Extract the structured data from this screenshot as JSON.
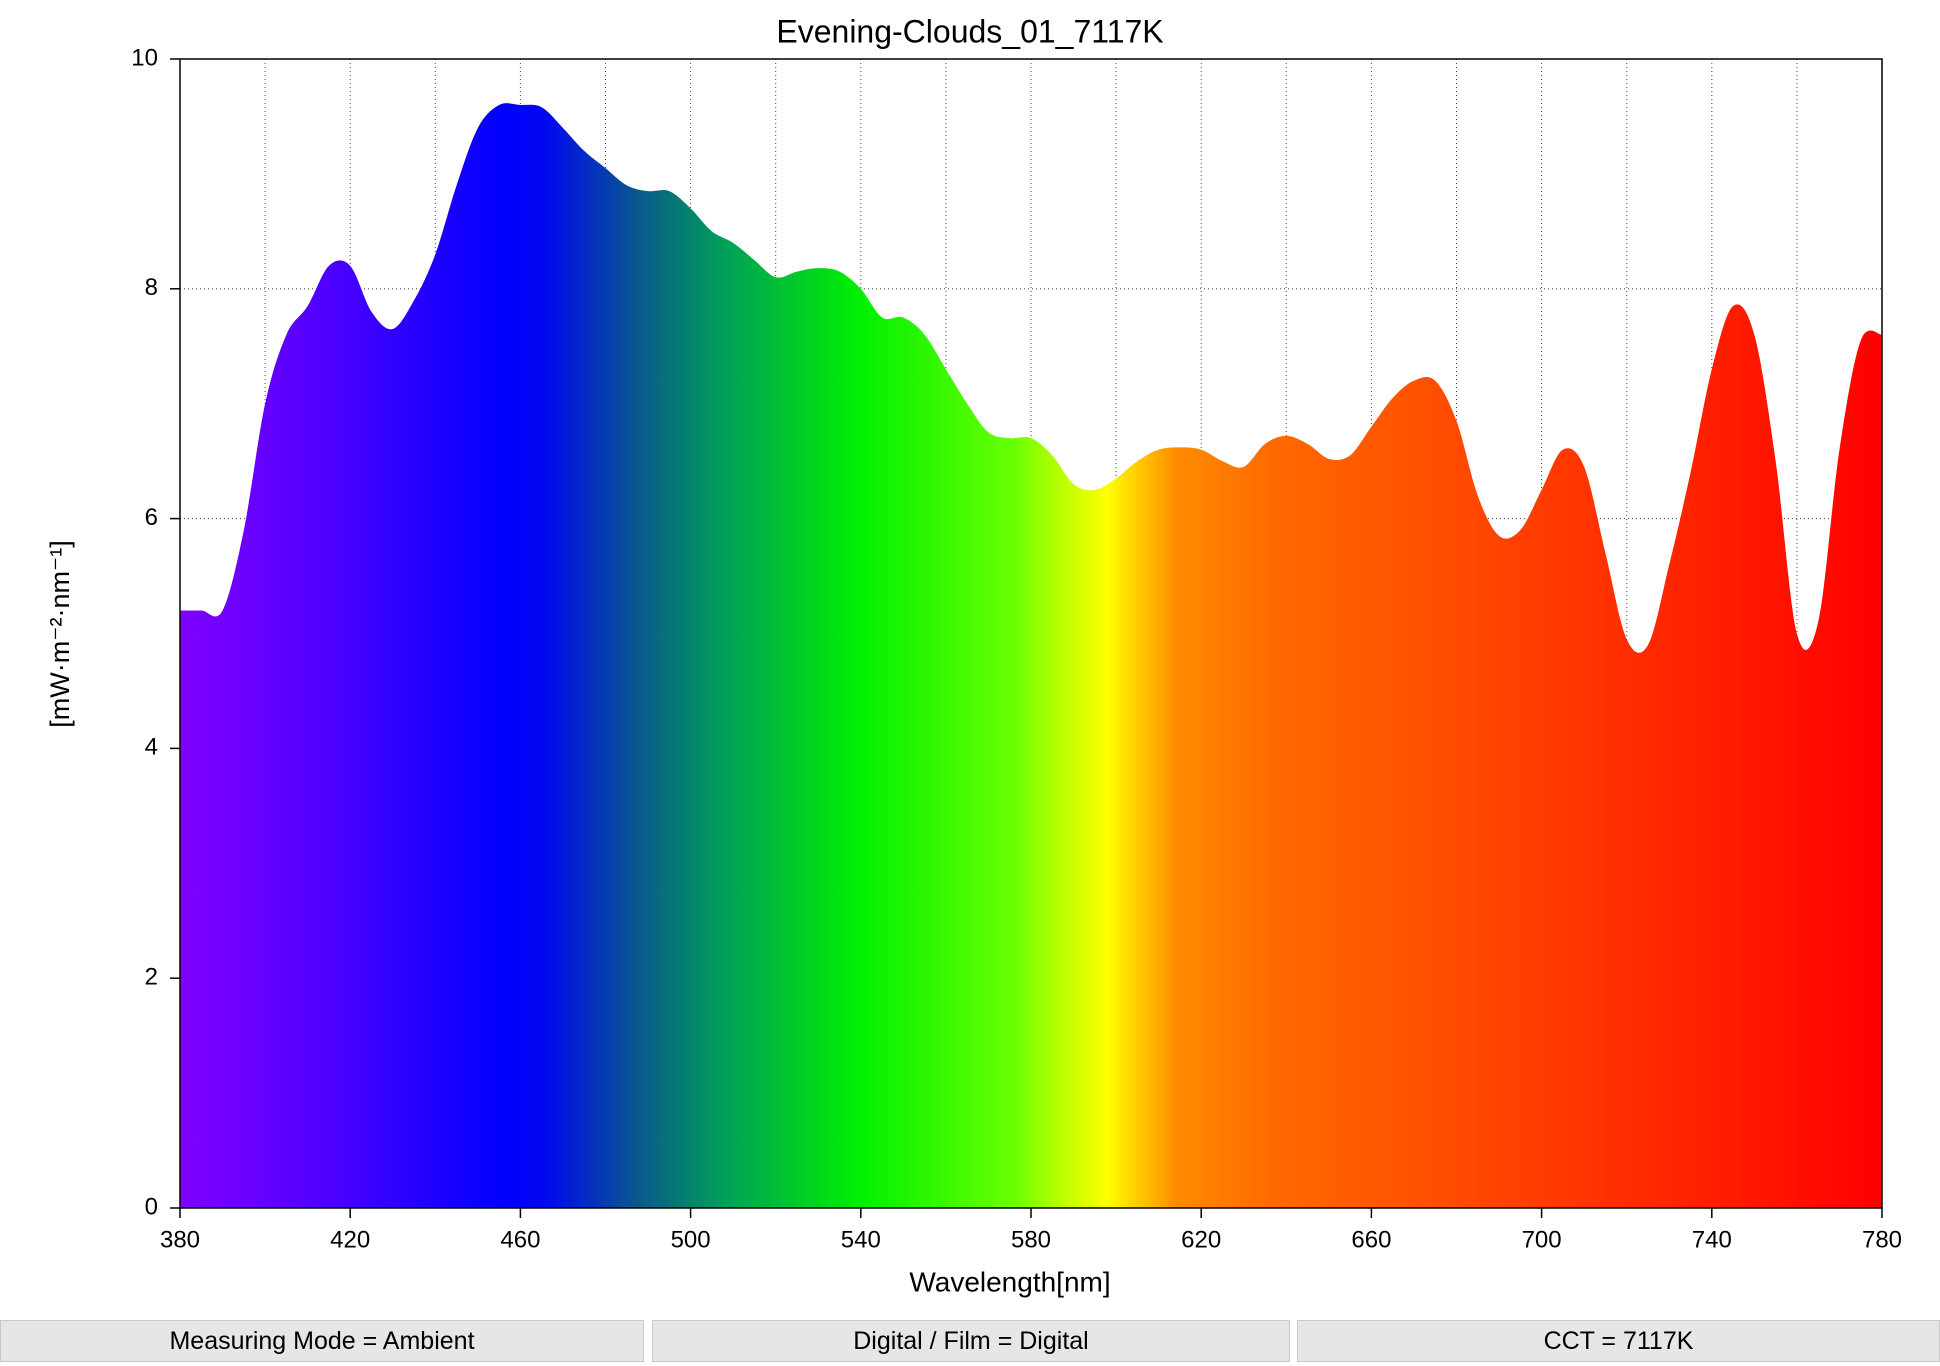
{
  "chart_data": {
    "type": "area",
    "title": "Evening-Clouds_01_7117K",
    "x_label": "Wavelength[nm]",
    "y_label": "[mW·m⁻²·nm⁻¹]",
    "x": [
      380,
      385,
      390,
      395,
      400,
      405,
      410,
      415,
      420,
      425,
      430,
      435,
      440,
      445,
      450,
      455,
      460,
      465,
      470,
      475,
      480,
      485,
      490,
      495,
      500,
      505,
      510,
      515,
      520,
      525,
      530,
      535,
      540,
      545,
      550,
      555,
      560,
      565,
      570,
      575,
      580,
      585,
      590,
      595,
      600,
      605,
      610,
      615,
      620,
      625,
      630,
      635,
      640,
      645,
      650,
      655,
      660,
      665,
      670,
      675,
      680,
      685,
      690,
      695,
      700,
      705,
      710,
      715,
      720,
      725,
      730,
      735,
      740,
      745,
      750,
      755,
      760,
      765,
      770,
      775,
      780
    ],
    "values": [
      5.2,
      5.2,
      5.2,
      5.9,
      7.0,
      7.6,
      7.85,
      8.2,
      8.2,
      7.8,
      7.65,
      7.9,
      8.3,
      8.9,
      9.4,
      9.6,
      9.6,
      9.58,
      9.4,
      9.2,
      9.05,
      8.9,
      8.85,
      8.85,
      8.7,
      8.5,
      8.4,
      8.25,
      8.1,
      8.15,
      8.18,
      8.15,
      8.0,
      7.75,
      7.75,
      7.6,
      7.3,
      7.0,
      6.75,
      6.7,
      6.7,
      6.55,
      6.3,
      6.25,
      6.35,
      6.5,
      6.6,
      6.62,
      6.6,
      6.5,
      6.45,
      6.65,
      6.72,
      6.65,
      6.52,
      6.55,
      6.8,
      7.05,
      7.2,
      7.2,
      6.85,
      6.2,
      5.85,
      5.9,
      6.25,
      6.6,
      6.45,
      5.7,
      4.95,
      4.9,
      5.6,
      6.4,
      7.3,
      7.85,
      7.6,
      6.5,
      5.0,
      5.1,
      6.6,
      7.55,
      7.6
    ],
    "xlim": [
      380,
      780
    ],
    "xticks": [
      380,
      420,
      460,
      500,
      540,
      580,
      620,
      660,
      700,
      740,
      780
    ],
    "ylim": [
      0,
      10
    ],
    "yticks": [
      0,
      2,
      4,
      6,
      8,
      10
    ],
    "grid": true
  },
  "footer": {
    "items": [
      "Measuring Mode = Ambient",
      "Digital / Film = Digital",
      "CCT = 7117K"
    ]
  }
}
